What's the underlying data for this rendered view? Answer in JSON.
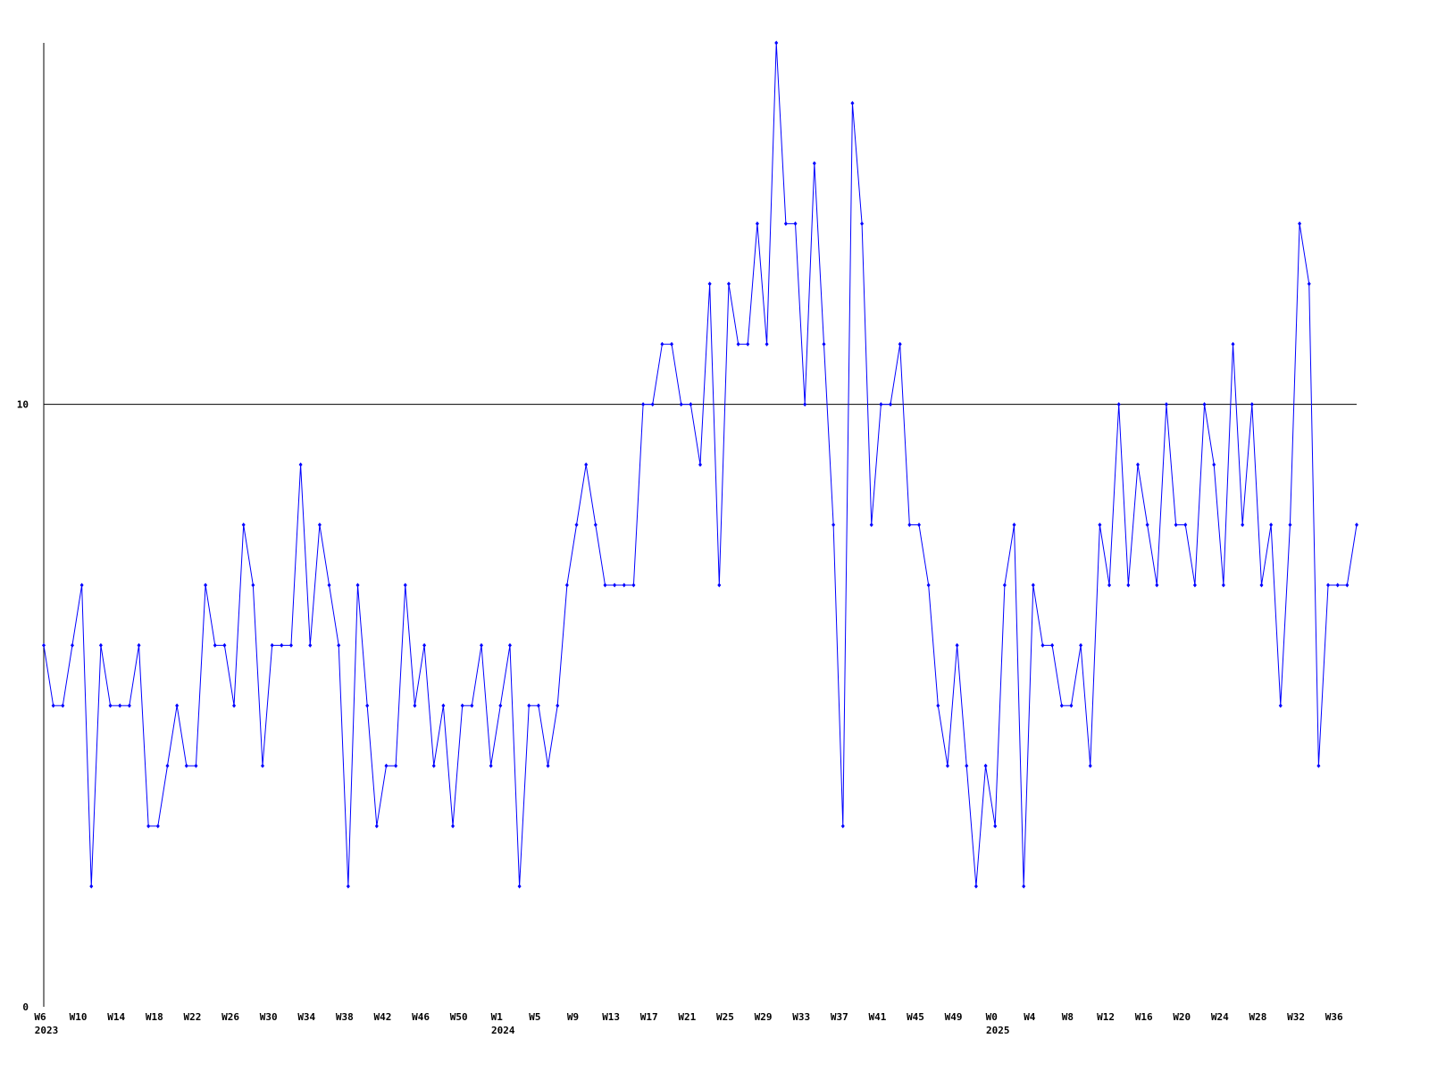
{
  "chart_data": {
    "type": "line",
    "categories": [
      "W6",
      null,
      null,
      null,
      "W10",
      null,
      null,
      null,
      "W14",
      null,
      null,
      null,
      "W18",
      null,
      null,
      null,
      "W22",
      null,
      null,
      null,
      "W26",
      null,
      null,
      null,
      "W30",
      null,
      null,
      null,
      "W34",
      null,
      null,
      null,
      "W38",
      null,
      null,
      null,
      "W42",
      null,
      null,
      null,
      "W46",
      null,
      null,
      null,
      "W50",
      null,
      null,
      null,
      "W1",
      null,
      null,
      null,
      "W5",
      null,
      null,
      null,
      "W9",
      null,
      null,
      null,
      "W13",
      null,
      null,
      null,
      "W17",
      null,
      null,
      null,
      "W21",
      null,
      null,
      null,
      "W25",
      null,
      null,
      null,
      "W29",
      null,
      null,
      null,
      "W33",
      null,
      null,
      null,
      "W37",
      null,
      null,
      null,
      "W41",
      null,
      null,
      null,
      "W45",
      null,
      null,
      null,
      "W49",
      null,
      null,
      null,
      "W0",
      null,
      null,
      null,
      "W4",
      null,
      null,
      null,
      "W8",
      null,
      null,
      null,
      "W12",
      null,
      null,
      null,
      "W16",
      null,
      null,
      null,
      "W20",
      null,
      null,
      null,
      "W24",
      null,
      null,
      null,
      "W28",
      null,
      null,
      null,
      "W32",
      null,
      null,
      null,
      "W36",
      null,
      null
    ],
    "year_labels": [
      "2023",
      null,
      null,
      null,
      null,
      null,
      null,
      null,
      null,
      null,
      null,
      null,
      null,
      null,
      null,
      null,
      null,
      null,
      null,
      null,
      null,
      null,
      null,
      null,
      null,
      null,
      null,
      null,
      null,
      null,
      null,
      null,
      null,
      null,
      null,
      null,
      null,
      null,
      null,
      null,
      null,
      null,
      null,
      null,
      null,
      null,
      null,
      null,
      "2024",
      null,
      null,
      null,
      null,
      null,
      null,
      null,
      null,
      null,
      null,
      null,
      null,
      null,
      null,
      null,
      null,
      null,
      null,
      null,
      null,
      null,
      null,
      null,
      null,
      null,
      null,
      null,
      null,
      null,
      null,
      null,
      null,
      null,
      null,
      null,
      null,
      null,
      null,
      null,
      null,
      null,
      null,
      null,
      null,
      null,
      null,
      null,
      null,
      null,
      null,
      null,
      "2025",
      null,
      null,
      null,
      null,
      null,
      null,
      null,
      null,
      null,
      null,
      null,
      null,
      null,
      null,
      null,
      null,
      null,
      null,
      null,
      null,
      null,
      null,
      null,
      null,
      null,
      null,
      null,
      null,
      null,
      null,
      null,
      null,
      null,
      null,
      null,
      null,
      null,
      null
    ],
    "values": [
      6,
      5,
      5,
      6,
      7,
      2,
      6,
      5,
      5,
      5,
      6,
      3,
      3,
      4,
      5,
      4,
      4,
      7,
      6,
      6,
      5,
      8,
      7,
      4,
      6,
      6,
      6,
      9,
      6,
      8,
      7,
      6,
      2,
      7,
      5,
      3,
      4,
      4,
      7,
      5,
      6,
      4,
      5,
      3,
      5,
      5,
      6,
      4,
      5,
      6,
      2,
      5,
      5,
      4,
      5,
      7,
      8,
      9,
      8,
      7,
      7,
      7,
      7,
      10,
      10,
      11,
      11,
      10,
      10,
      9,
      12,
      7,
      12,
      11,
      11,
      13,
      11,
      16,
      13,
      13,
      10,
      14,
      11,
      8,
      3,
      15,
      13,
      8,
      10,
      10,
      11,
      8,
      8,
      7,
      5,
      4,
      6,
      4,
      2,
      4,
      3,
      7,
      8,
      2,
      7,
      6,
      6,
      5,
      5,
      6,
      4,
      8,
      7,
      10,
      7,
      9,
      8,
      7,
      10,
      8,
      8,
      7,
      10,
      9,
      7,
      11,
      8,
      10,
      7,
      8,
      5,
      8,
      13,
      12,
      4,
      7,
      7,
      7,
      8
    ],
    "color": "#0000ff",
    "ylim": [
      0,
      16
    ],
    "yticks": [
      0,
      10
    ],
    "grid": true
  }
}
